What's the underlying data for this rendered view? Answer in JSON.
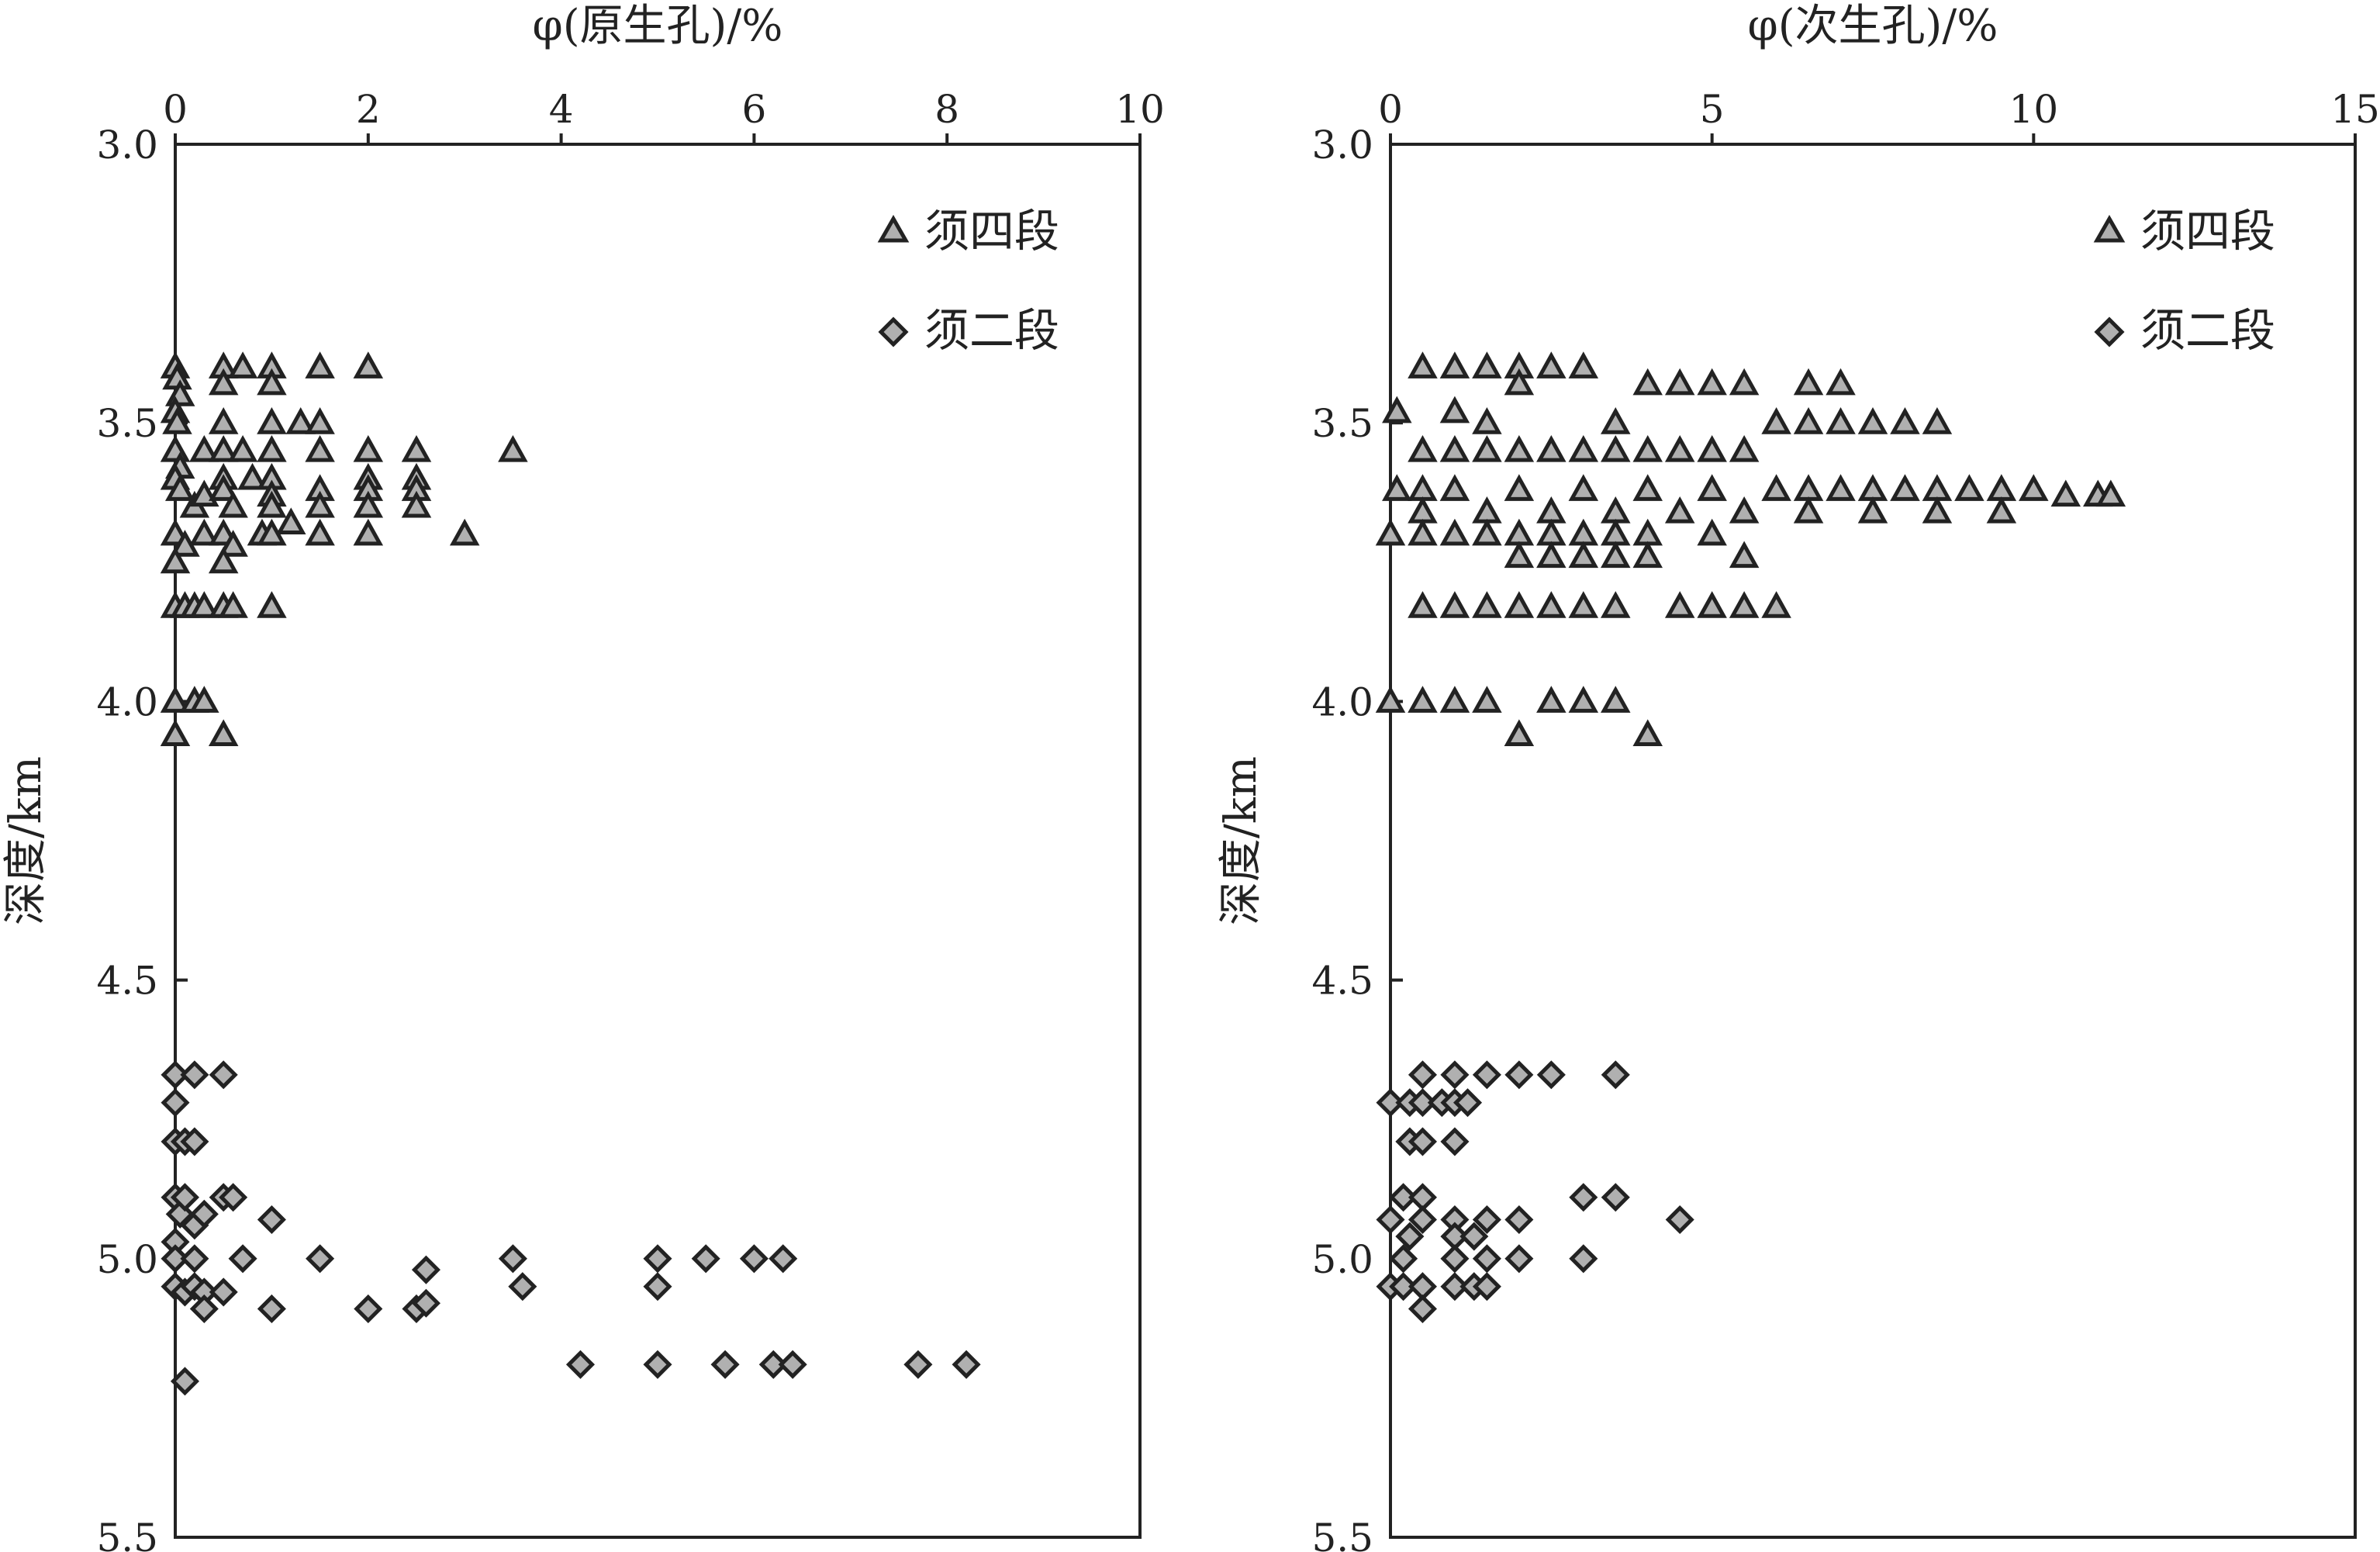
{
  "chart_data": [
    {
      "type": "scatter",
      "xlabel": "φ(原生孔)/%",
      "ylabel": "深度/km",
      "xlim": [
        0,
        10
      ],
      "ylim": [
        3.0,
        5.5
      ],
      "x_ticks": [
        "0",
        "2",
        "4",
        "6",
        "8",
        "10"
      ],
      "y_ticks": [
        "3.0",
        "3.5",
        "4.0",
        "4.5",
        "5.0",
        "5.5"
      ],
      "x_axis_position": "top",
      "y_inverted": true,
      "grid": false,
      "legend_position": "top-right",
      "series": [
        {
          "name": "须四段",
          "marker": "triangle",
          "points": [
            [
              0,
              3.4
            ],
            [
              0.02,
              3.42
            ],
            [
              0.05,
              3.45
            ],
            [
              0.5,
              3.4
            ],
            [
              0.5,
              3.43
            ],
            [
              0.7,
              3.4
            ],
            [
              1.0,
              3.4
            ],
            [
              1.0,
              3.43
            ],
            [
              1.5,
              3.4
            ],
            [
              2.0,
              3.4
            ],
            [
              0,
              3.48
            ],
            [
              0.02,
              3.5
            ],
            [
              0,
              3.55
            ],
            [
              0.05,
              3.58
            ],
            [
              0.3,
              3.55
            ],
            [
              0.5,
              3.5
            ],
            [
              0.5,
              3.55
            ],
            [
              0.7,
              3.55
            ],
            [
              1.0,
              3.5
            ],
            [
              1.0,
              3.55
            ],
            [
              1.3,
              3.5
            ],
            [
              1.5,
              3.5
            ],
            [
              1.5,
              3.55
            ],
            [
              2.0,
              3.55
            ],
            [
              2.5,
              3.55
            ],
            [
              3.5,
              3.55
            ],
            [
              0,
              3.6
            ],
            [
              0.05,
              3.62
            ],
            [
              0.2,
              3.65
            ],
            [
              0.3,
              3.63
            ],
            [
              0.5,
              3.6
            ],
            [
              0.5,
              3.62
            ],
            [
              0.6,
              3.65
            ],
            [
              0.8,
              3.6
            ],
            [
              1.0,
              3.6
            ],
            [
              1.0,
              3.63
            ],
            [
              1.0,
              3.65
            ],
            [
              1.2,
              3.68
            ],
            [
              1.5,
              3.62
            ],
            [
              1.5,
              3.65
            ],
            [
              2.0,
              3.6
            ],
            [
              2.0,
              3.62
            ],
            [
              2.0,
              3.65
            ],
            [
              2.5,
              3.6
            ],
            [
              2.5,
              3.62
            ],
            [
              2.5,
              3.65
            ],
            [
              0,
              3.7
            ],
            [
              0.1,
              3.72
            ],
            [
              0.3,
              3.7
            ],
            [
              0.5,
              3.7
            ],
            [
              0.6,
              3.72
            ],
            [
              0.9,
              3.7
            ],
            [
              1.0,
              3.7
            ],
            [
              1.5,
              3.7
            ],
            [
              2.0,
              3.7
            ],
            [
              3.0,
              3.7
            ],
            [
              0,
              3.75
            ],
            [
              0.5,
              3.75
            ],
            [
              0,
              3.83
            ],
            [
              0.1,
              3.83
            ],
            [
              0.2,
              3.83
            ],
            [
              0.3,
              3.83
            ],
            [
              0.5,
              3.83
            ],
            [
              0.6,
              3.83
            ],
            [
              1.0,
              3.83
            ],
            [
              0,
              4.0
            ],
            [
              0.2,
              4.0
            ],
            [
              0.3,
              4.0
            ],
            [
              0,
              4.06
            ],
            [
              0.5,
              4.06
            ]
          ]
        },
        {
          "name": "须二段",
          "marker": "diamond",
          "points": [
            [
              0,
              4.67
            ],
            [
              0.2,
              4.67
            ],
            [
              0.5,
              4.67
            ],
            [
              0,
              4.72
            ],
            [
              0,
              4.79
            ],
            [
              0.1,
              4.79
            ],
            [
              0.2,
              4.79
            ],
            [
              0,
              4.89
            ],
            [
              0.05,
              4.92
            ],
            [
              0.1,
              4.89
            ],
            [
              0.2,
              4.94
            ],
            [
              0.3,
              4.92
            ],
            [
              0.5,
              4.89
            ],
            [
              0.6,
              4.89
            ],
            [
              1.0,
              4.93
            ],
            [
              0,
              4.97
            ],
            [
              0,
              5.0
            ],
            [
              0.2,
              5.0
            ],
            [
              0.7,
              5.0
            ],
            [
              1.5,
              5.0
            ],
            [
              2.6,
              5.02
            ],
            [
              3.5,
              5.0
            ],
            [
              5.0,
              5.0
            ],
            [
              5.5,
              5.0
            ],
            [
              6.0,
              5.0
            ],
            [
              6.3,
              5.0
            ],
            [
              0,
              5.05
            ],
            [
              0.1,
              5.06
            ],
            [
              0.2,
              5.05
            ],
            [
              0.3,
              5.06
            ],
            [
              0.5,
              5.06
            ],
            [
              3.6,
              5.05
            ],
            [
              5.0,
              5.05
            ],
            [
              0.3,
              5.09
            ],
            [
              1.0,
              5.09
            ],
            [
              2.0,
              5.09
            ],
            [
              2.5,
              5.09
            ],
            [
              2.6,
              5.08
            ],
            [
              4.2,
              5.19
            ],
            [
              5.0,
              5.19
            ],
            [
              5.7,
              5.19
            ],
            [
              6.2,
              5.19
            ],
            [
              6.4,
              5.19
            ],
            [
              7.7,
              5.19
            ],
            [
              8.2,
              5.19
            ],
            [
              0.1,
              5.22
            ]
          ]
        }
      ]
    },
    {
      "type": "scatter",
      "xlabel": "φ(次生孔)/%",
      "ylabel": "深度/km",
      "xlim": [
        0,
        15
      ],
      "ylim": [
        3.0,
        5.5
      ],
      "x_ticks": [
        "0",
        "5",
        "10",
        "15"
      ],
      "y_ticks": [
        "3.0",
        "3.5",
        "4.0",
        "4.5",
        "5.0",
        "5.5"
      ],
      "x_axis_position": "top",
      "y_inverted": true,
      "grid": false,
      "legend_position": "top-right",
      "series": [
        {
          "name": "须四段",
          "marker": "triangle",
          "points": [
            [
              0.5,
              3.4
            ],
            [
              1.0,
              3.4
            ],
            [
              1.5,
              3.4
            ],
            [
              2.0,
              3.4
            ],
            [
              2.5,
              3.4
            ],
            [
              3.0,
              3.4
            ],
            [
              2.0,
              3.43
            ],
            [
              4.0,
              3.43
            ],
            [
              4.5,
              3.43
            ],
            [
              5.0,
              3.43
            ],
            [
              5.5,
              3.43
            ],
            [
              6.5,
              3.43
            ],
            [
              7.0,
              3.43
            ],
            [
              0.1,
              3.48
            ],
            [
              1.0,
              3.48
            ],
            [
              1.5,
              3.5
            ],
            [
              3.5,
              3.5
            ],
            [
              6.0,
              3.5
            ],
            [
              6.5,
              3.5
            ],
            [
              7.0,
              3.5
            ],
            [
              7.5,
              3.5
            ],
            [
              8.0,
              3.5
            ],
            [
              8.5,
              3.5
            ],
            [
              0.5,
              3.55
            ],
            [
              1.0,
              3.55
            ],
            [
              1.5,
              3.55
            ],
            [
              2.0,
              3.55
            ],
            [
              2.5,
              3.55
            ],
            [
              3.0,
              3.55
            ],
            [
              3.5,
              3.55
            ],
            [
              4.0,
              3.55
            ],
            [
              4.5,
              3.55
            ],
            [
              5.0,
              3.55
            ],
            [
              5.5,
              3.55
            ],
            [
              0.1,
              3.62
            ],
            [
              0.5,
              3.62
            ],
            [
              1.0,
              3.62
            ],
            [
              2.0,
              3.62
            ],
            [
              3.0,
              3.62
            ],
            [
              4.0,
              3.62
            ],
            [
              5.0,
              3.62
            ],
            [
              6.0,
              3.62
            ],
            [
              6.5,
              3.62
            ],
            [
              7.0,
              3.62
            ],
            [
              7.5,
              3.62
            ],
            [
              8.0,
              3.62
            ],
            [
              8.5,
              3.62
            ],
            [
              9.0,
              3.62
            ],
            [
              9.5,
              3.62
            ],
            [
              10.0,
              3.62
            ],
            [
              10.5,
              3.63
            ],
            [
              11.0,
              3.63
            ],
            [
              11.2,
              3.63
            ],
            [
              0.5,
              3.66
            ],
            [
              1.5,
              3.66
            ],
            [
              2.5,
              3.66
            ],
            [
              3.5,
              3.66
            ],
            [
              4.5,
              3.66
            ],
            [
              5.5,
              3.66
            ],
            [
              6.5,
              3.66
            ],
            [
              7.5,
              3.66
            ],
            [
              8.5,
              3.66
            ],
            [
              9.5,
              3.66
            ],
            [
              0,
              3.7
            ],
            [
              0.5,
              3.7
            ],
            [
              1.0,
              3.7
            ],
            [
              1.5,
              3.7
            ],
            [
              2.0,
              3.7
            ],
            [
              2.5,
              3.7
            ],
            [
              3.0,
              3.7
            ],
            [
              3.5,
              3.7
            ],
            [
              4.0,
              3.7
            ],
            [
              5.0,
              3.7
            ],
            [
              2.0,
              3.74
            ],
            [
              2.5,
              3.74
            ],
            [
              3.0,
              3.74
            ],
            [
              3.5,
              3.74
            ],
            [
              4.0,
              3.74
            ],
            [
              5.5,
              3.74
            ],
            [
              0.5,
              3.83
            ],
            [
              1.0,
              3.83
            ],
            [
              1.5,
              3.83
            ],
            [
              2.0,
              3.83
            ],
            [
              2.5,
              3.83
            ],
            [
              3.0,
              3.83
            ],
            [
              3.5,
              3.83
            ],
            [
              4.5,
              3.83
            ],
            [
              5.0,
              3.83
            ],
            [
              5.5,
              3.83
            ],
            [
              6.0,
              3.83
            ],
            [
              0,
              4.0
            ],
            [
              0.5,
              4.0
            ],
            [
              1.0,
              4.0
            ],
            [
              1.5,
              4.0
            ],
            [
              2.5,
              4.0
            ],
            [
              3.0,
              4.0
            ],
            [
              3.5,
              4.0
            ],
            [
              2.0,
              4.06
            ],
            [
              4.0,
              4.06
            ]
          ]
        },
        {
          "name": "须二段",
          "marker": "diamond",
          "points": [
            [
              0.5,
              4.67
            ],
            [
              1.0,
              4.67
            ],
            [
              1.5,
              4.67
            ],
            [
              2.0,
              4.67
            ],
            [
              2.5,
              4.67
            ],
            [
              3.5,
              4.67
            ],
            [
              0,
              4.72
            ],
            [
              0.3,
              4.72
            ],
            [
              0.5,
              4.72
            ],
            [
              0.8,
              4.72
            ],
            [
              1.0,
              4.72
            ],
            [
              1.2,
              4.72
            ],
            [
              0.3,
              4.79
            ],
            [
              0.5,
              4.79
            ],
            [
              1.0,
              4.79
            ],
            [
              0.2,
              4.89
            ],
            [
              0.5,
              4.89
            ],
            [
              3.0,
              4.89
            ],
            [
              3.5,
              4.89
            ],
            [
              0,
              4.93
            ],
            [
              0.5,
              4.93
            ],
            [
              1.0,
              4.93
            ],
            [
              1.5,
              4.93
            ],
            [
              2.0,
              4.93
            ],
            [
              4.5,
              4.93
            ],
            [
              0.3,
              4.96
            ],
            [
              1.0,
              4.96
            ],
            [
              1.3,
              4.96
            ],
            [
              0.2,
              5.0
            ],
            [
              1.0,
              5.0
            ],
            [
              1.5,
              5.0
            ],
            [
              2.0,
              5.0
            ],
            [
              3.0,
              5.0
            ],
            [
              0,
              5.05
            ],
            [
              0.2,
              5.05
            ],
            [
              0.5,
              5.05
            ],
            [
              1.0,
              5.05
            ],
            [
              1.3,
              5.05
            ],
            [
              1.5,
              5.05
            ],
            [
              0.5,
              5.09
            ]
          ]
        }
      ]
    }
  ]
}
